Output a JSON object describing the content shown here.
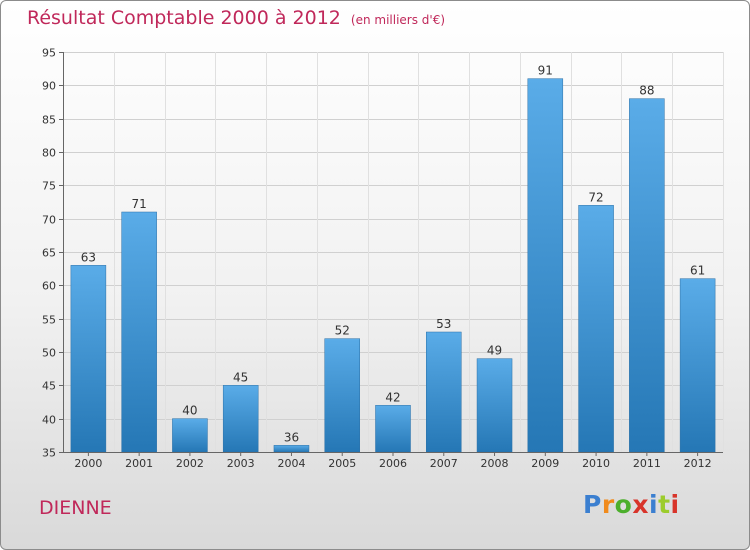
{
  "title": "Résultat Comptable 2000 à 2012",
  "subtitle": "(en milliers d'€)",
  "commune": "DIENNE",
  "logo": {
    "text": "Proxiti",
    "letter_colors": [
      "#3b7fd0",
      "#f08a1c",
      "#4caf2c",
      "#d8342a",
      "#3b7fd0",
      "#9ccc2c",
      "#d8342a"
    ]
  },
  "colors": {
    "title": "#c0285a",
    "bar_top": "#5aace8",
    "bar_bottom": "#2577b5"
  },
  "chart_data": {
    "type": "bar",
    "title": "Résultat Comptable 2000 à 2012",
    "subtitle": "(en milliers d'€)",
    "categories": [
      "2000",
      "2001",
      "2002",
      "2003",
      "2004",
      "2005",
      "2006",
      "2007",
      "2008",
      "2009",
      "2010",
      "2011",
      "2012"
    ],
    "values": [
      63,
      71,
      40,
      45,
      36,
      52,
      42,
      53,
      49,
      91,
      72,
      88,
      61
    ],
    "ylim": [
      35,
      95
    ],
    "yticks": [
      35,
      40,
      45,
      50,
      55,
      60,
      65,
      70,
      75,
      80,
      85,
      90,
      95
    ],
    "grid": true,
    "data_labels": true
  }
}
